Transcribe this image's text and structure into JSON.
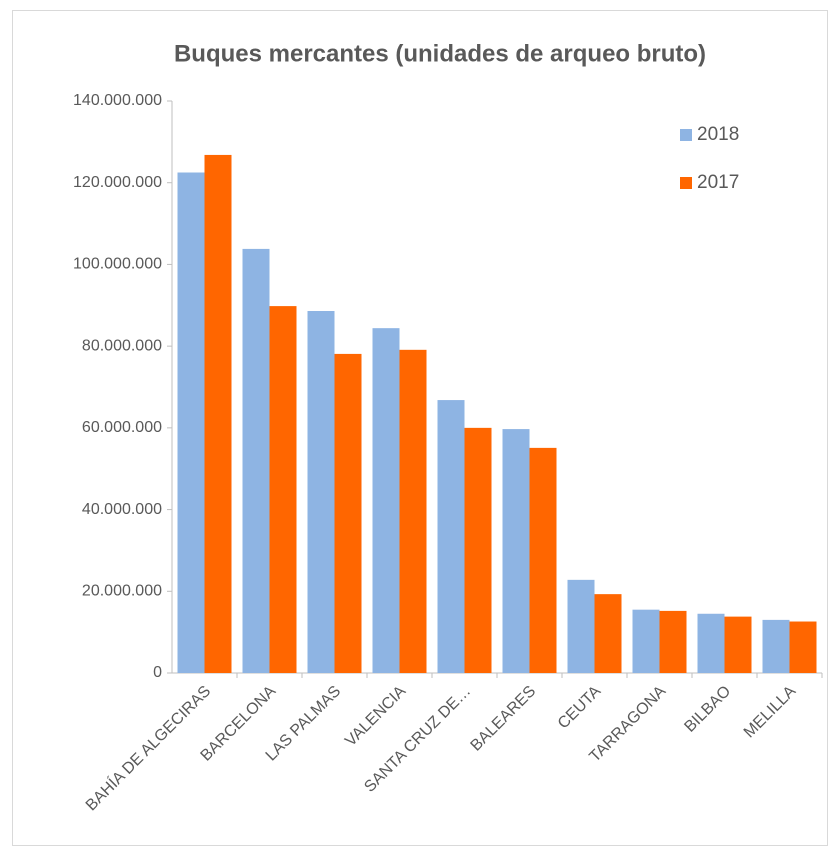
{
  "chart_data": {
    "type": "bar",
    "title": "Buques mercantes (unidades de arqueo bruto)",
    "categories": [
      "BAHÍA DE ALGECIRAS",
      "BARCELONA",
      "LAS PALMAS",
      "VALENCIA",
      "SANTA CRUZ DE…",
      "BALEARES",
      "CEUTA",
      "TARRAGONA",
      "BILBAO",
      "MELILLA"
    ],
    "series": [
      {
        "name": "2018",
        "color": "#8eb4e3",
        "values": [
          122500000,
          103800000,
          88600000,
          84400000,
          66800000,
          59700000,
          22800000,
          15500000,
          14500000,
          13000000
        ]
      },
      {
        "name": "2017",
        "color": "#ff6600",
        "values": [
          126800000,
          89800000,
          78100000,
          79100000,
          60000000,
          55100000,
          19300000,
          15200000,
          13800000,
          12600000
        ]
      }
    ],
    "ylim": [
      0,
      140000000
    ],
    "yticks": [
      0,
      {
        "value": 20000000,
        "label": "20.000.000"
      },
      {
        "value": 40000000,
        "label": "40.000.000"
      },
      {
        "value": 60000000,
        "label": "60.000.000"
      },
      {
        "value": 80000000,
        "label": "80.000.000"
      },
      {
        "value": 100000000,
        "label": "100.000.000"
      },
      {
        "value": 120000000,
        "label": "120.000.000"
      },
      {
        "value": 140000000,
        "label": "140.000.000"
      }
    ],
    "legend": "upper right"
  }
}
